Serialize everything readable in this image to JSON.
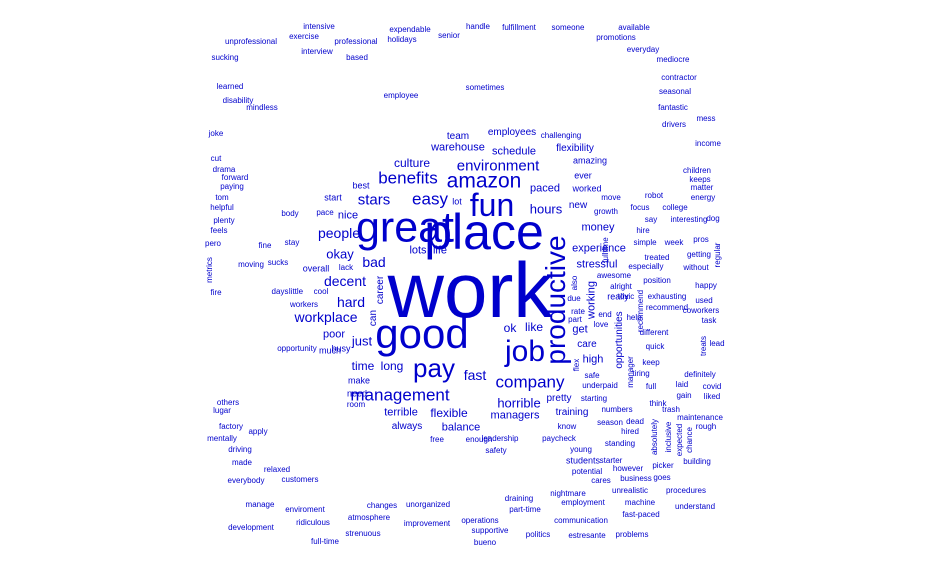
{
  "colors": {
    "word": "#0000cc",
    "background": "#ffffff"
  },
  "words": [
    "work",
    "place",
    "great",
    "good",
    "job",
    "fun",
    "pay",
    "productive",
    "amazon",
    "company",
    "management",
    "environment",
    "benefits",
    "easy",
    "stars",
    "people",
    "hours",
    "decent",
    "workplace",
    "hard",
    "fast",
    "bad",
    "okay",
    "horrible",
    "just",
    "ok",
    "time",
    "long",
    "culture",
    "flexible",
    "like",
    "money",
    "schedule",
    "paced",
    "balance",
    "stressful",
    "working",
    "get",
    "high",
    "terrible",
    "experience",
    "managers",
    "lots",
    "life",
    "nice",
    "warehouse",
    "poor",
    "team",
    "employees",
    "opportunities",
    "care",
    "always",
    "pretty",
    "training",
    "lot",
    "new",
    "career",
    "can",
    "flexibility",
    "make",
    "worked",
    "amazing",
    "ever",
    "moving",
    "hire",
    "much",
    "need",
    "really",
    "start",
    "best",
    "room",
    "fulltime",
    "busy",
    "overall",
    "stay",
    "mindless",
    "growth",
    "employee",
    "sucks",
    "different",
    "opportunity",
    "enough",
    "free",
    "cool",
    "move",
    "help",
    "lack",
    "sometimes",
    "challenging",
    "leadership",
    "getting",
    "safety",
    "days",
    "little",
    "workers",
    "body",
    "fine",
    "atmosphere",
    "quick",
    "love",
    "keep",
    "pace"
  ],
  "sample_text": [
    "unprofessional",
    "sucking",
    "learned",
    "disability",
    "joke",
    "cut",
    "drama",
    "forward",
    "paying",
    "helpful",
    "plenty",
    "feels",
    "pero",
    "metrics",
    "fire",
    "tom",
    "intensive",
    "exercise",
    "interview",
    "professional",
    "based",
    "holidays",
    "expendable",
    "senior",
    "handle",
    "fulfillment",
    "someone",
    "available",
    "promotions",
    "everyday",
    "mediocre",
    "contractor",
    "seasonal",
    "fantastic",
    "drivers",
    "mess",
    "income",
    "children",
    "keeps",
    "matter",
    "energy",
    "dog",
    "pros",
    "regular",
    "happy",
    "used",
    "coworkers",
    "task",
    "lead",
    "treats",
    "covid",
    "liked",
    "rough",
    "building",
    "procedures",
    "understand",
    "problems",
    "fast-paced",
    "communication",
    "politics",
    "estresante",
    "bueno",
    "full-time",
    "strenuous",
    "development",
    "ridiculous",
    "manage",
    "everybody",
    "mentally",
    "lugar",
    "others",
    "factory",
    "apply",
    "driving",
    "made",
    "relaxed",
    "customers",
    "enviroment",
    "changes",
    "unorganized",
    "improvement",
    "operations",
    "supportive",
    "draining",
    "part-time",
    "nightmare",
    "employment",
    "unrealistic",
    "machine",
    "picker",
    "absolutely",
    "inclusive",
    "expected",
    "chance",
    "definitely",
    "without",
    "week",
    "simple",
    "say",
    "interesting",
    "focus",
    "robot",
    "college",
    "especially",
    "treated",
    "awesome",
    "alright",
    "toxic",
    "full",
    "tiring",
    "laid",
    "gain",
    "think",
    "trash",
    "maintenance",
    "season",
    "dead",
    "hired",
    "standing",
    "however",
    "business",
    "goes",
    "cares",
    "potential",
    "starter",
    "students",
    "young",
    "paycheck",
    "know",
    "starting",
    "numbers",
    "underpaid",
    "manager",
    "recommend",
    "exhausting",
    "recommend",
    "position",
    "rate",
    "part",
    "end",
    "due",
    "also",
    "flex",
    "safe",
    "bit",
    "go",
    "fulltime",
    "hours",
    "schedule",
    "management",
    "environment"
  ]
}
